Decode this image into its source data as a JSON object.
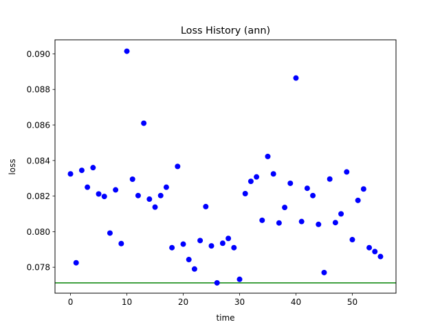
{
  "chart_data": {
    "type": "scatter",
    "title": "Loss History (ann)",
    "xlabel": "time",
    "ylabel": "loss",
    "xlim": [
      -2.75,
      57.75
    ],
    "ylim": [
      0.07654,
      0.09079
    ],
    "xticks": [
      0,
      10,
      20,
      30,
      40,
      50
    ],
    "yticks": [
      0.078,
      0.08,
      0.082,
      0.084,
      0.086,
      0.088,
      0.09
    ],
    "ytick_decimals": 3,
    "grid": false,
    "legend": "none",
    "colors": {
      "points": "#0000ff",
      "reference_line": "#008000"
    },
    "reference_line": {
      "y": 0.07712
    },
    "series": [
      {
        "x": [
          0,
          1,
          2,
          3,
          4,
          5,
          6,
          7,
          8,
          9,
          10,
          11,
          12,
          13,
          14,
          15,
          16,
          17,
          18,
          19,
          20,
          21,
          22,
          23,
          24,
          25,
          26,
          27,
          28,
          29,
          30,
          31,
          32,
          33,
          34,
          35,
          36,
          37,
          38,
          39,
          40,
          41,
          42,
          43,
          44,
          45,
          46,
          47,
          48,
          49,
          50,
          51,
          52,
          53,
          54,
          55
        ],
        "y": [
          0.08325,
          0.07825,
          0.08345,
          0.0825,
          0.0836,
          0.08212,
          0.08198,
          0.07992,
          0.08235,
          0.07933,
          0.09015,
          0.08295,
          0.08203,
          0.0861,
          0.08183,
          0.08138,
          0.08203,
          0.0825,
          0.0791,
          0.08367,
          0.0793,
          0.07843,
          0.0779,
          0.0795,
          0.08141,
          0.0792,
          0.07712,
          0.07935,
          0.07962,
          0.0791,
          0.07732,
          0.08214,
          0.08283,
          0.08308,
          0.08064,
          0.08423,
          0.08325,
          0.08049,
          0.08136,
          0.08272,
          0.08864,
          0.08057,
          0.08244,
          0.08203,
          0.08041,
          0.0777,
          0.08296,
          0.08051,
          0.081,
          0.08336,
          0.07955,
          0.08176,
          0.0824,
          0.0791,
          0.07888,
          0.0786
        ]
      }
    ]
  }
}
